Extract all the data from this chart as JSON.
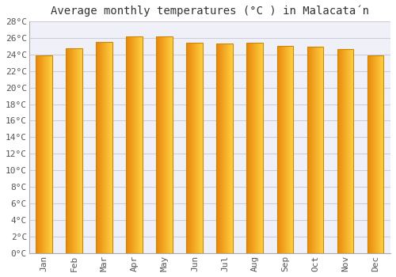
{
  "title": "Average monthly temperatures (°C ) in Malacatán",
  "months": [
    "Jan",
    "Feb",
    "Mar",
    "Apr",
    "May",
    "Jun",
    "Jul",
    "Aug",
    "Sep",
    "Oct",
    "Nov",
    "Dec"
  ],
  "values": [
    23.9,
    24.7,
    25.5,
    26.2,
    26.2,
    25.4,
    25.3,
    25.4,
    25.0,
    24.9,
    24.6,
    23.9
  ],
  "bar_color_left": "#E8860A",
  "bar_color_right": "#FFD040",
  "bar_edge_color": "#CC8800",
  "background_color": "#FFFFFF",
  "plot_bg_color": "#F0F0F8",
  "grid_color": "#CCCCDD",
  "ylim": [
    0,
    28
  ],
  "ytick_step": 2,
  "title_fontsize": 10,
  "tick_fontsize": 8,
  "font_family": "monospace",
  "bar_width": 0.55
}
